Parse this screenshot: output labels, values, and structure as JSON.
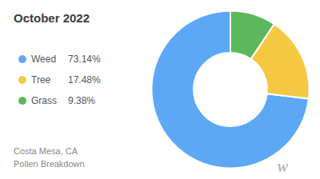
{
  "chart_data": {
    "type": "pie",
    "title": "October 2022",
    "subtitle": [
      "Costa Mesa, CA",
      "Pollen Breakdown"
    ],
    "categories": [
      "Weed",
      "Tree",
      "Grass"
    ],
    "values": [
      73.14,
      17.48,
      9.38
    ],
    "value_labels": [
      "73.14%",
      "17.48%",
      "9.38%"
    ],
    "colors": [
      "#5DA8F5",
      "#F5C842",
      "#5CB85C"
    ],
    "legend": "left",
    "data_labels": false,
    "annotations": [
      "w"
    ]
  }
}
